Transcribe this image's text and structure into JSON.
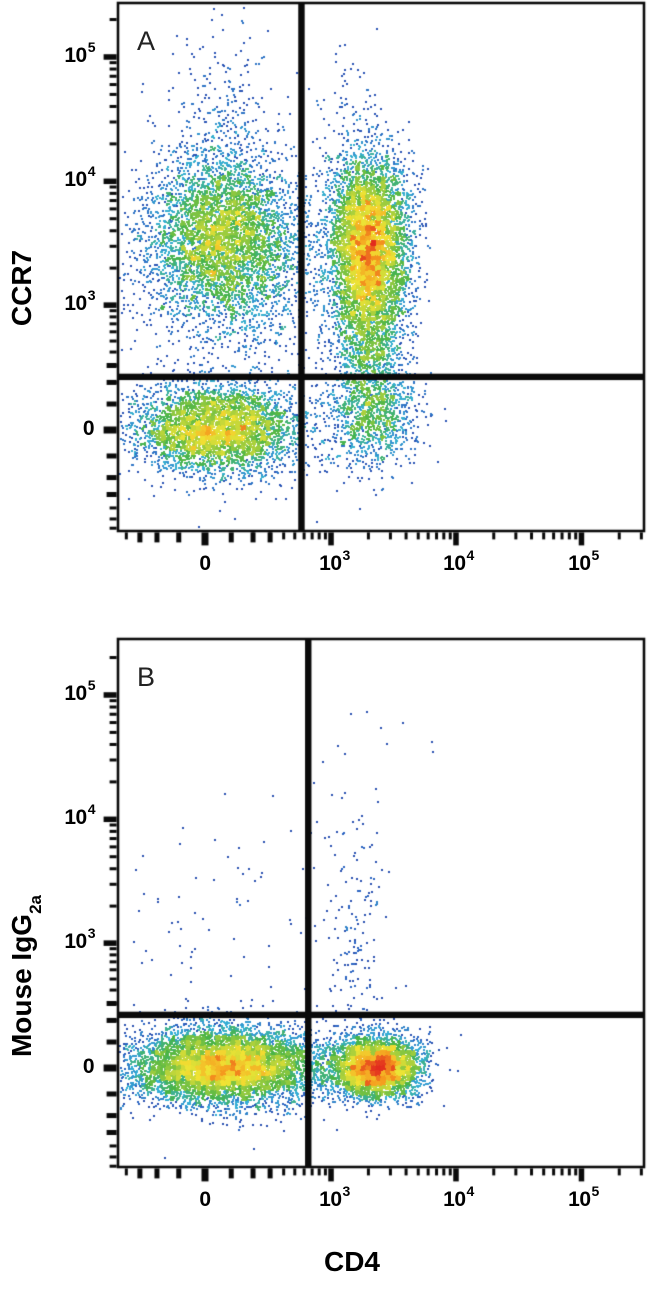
{
  "x_axis_label": "CD4",
  "density_palette": [
    {
      "t": 0.0,
      "color": "#273a96"
    },
    {
      "t": 0.22,
      "color": "#2b5fc0"
    },
    {
      "t": 0.4,
      "color": "#35aed6"
    },
    {
      "t": 0.55,
      "color": "#48b447"
    },
    {
      "t": 0.7,
      "color": "#a8cf3d"
    },
    {
      "t": 0.8,
      "color": "#f1e434"
    },
    {
      "t": 0.9,
      "color": "#f59a1e"
    },
    {
      "t": 1.0,
      "color": "#e22b1e"
    }
  ],
  "frame_color": "#0a0a0a",
  "chart_data": [
    {
      "type": "scatter_density",
      "panel_label": "A",
      "x_label": "CD4",
      "y_label": {
        "text": "CCR7",
        "sub": ""
      },
      "x_scale": "biexponential",
      "y_scale": "biexponential",
      "x_range": [
        -470,
        320000
      ],
      "y_range": [
        -630,
        270000
      ],
      "x_ticks": [
        {
          "value": 0,
          "base": "0",
          "exp": ""
        },
        {
          "value": 1000,
          "base": "10",
          "exp": "3"
        },
        {
          "value": 10000,
          "base": "10",
          "exp": "4"
        },
        {
          "value": 100000,
          "base": "10",
          "exp": "5"
        }
      ],
      "y_ticks": [
        {
          "value": 100000,
          "base": "10",
          "exp": "5"
        },
        {
          "value": 10000,
          "base": "10",
          "exp": "4"
        },
        {
          "value": 1000,
          "base": "10",
          "exp": "3"
        },
        {
          "value": 0,
          "base": "0",
          "exp": ""
        }
      ],
      "quadrant_gate": {
        "x": 570,
        "y": 230
      },
      "populations": [
        {
          "name": "CD4- CCR7+ cluster",
          "x": 70,
          "y": 3400,
          "sx": 0.7,
          "sy": 0.8,
          "n": 5200
        },
        {
          "name": "CD4- CCR7-high trail",
          "x": 70,
          "y": 30000,
          "sx": 0.55,
          "sy": 0.9,
          "n": 260
        },
        {
          "name": "CD4+ CCR7+ cluster",
          "x": 2000,
          "y": 3300,
          "sx": 0.37,
          "sy": 0.8,
          "n": 5600
        },
        {
          "name": "CD4+ CCR7-low tail",
          "x": 2000,
          "y": 650,
          "sx": 0.34,
          "sy": 0.75,
          "n": 1500
        },
        {
          "name": "CD4+ CCR7-high trail",
          "x": 1300,
          "y": 40000,
          "sx": 0.3,
          "sy": 0.8,
          "n": 60
        },
        {
          "name": "CD4- CCR7- cluster",
          "x": 40,
          "y": 5,
          "sx": 0.75,
          "sy": 0.4,
          "n": 4400
        },
        {
          "name": "CD4+ CCR7- cluster",
          "x": 2100,
          "y": 60,
          "sx": 0.42,
          "sy": 0.48,
          "n": 1100
        },
        {
          "name": "background scatter",
          "x": 120,
          "y": 800,
          "sx": 1.5,
          "sy": 1.8,
          "n": 380
        }
      ]
    },
    {
      "type": "scatter_density",
      "panel_label": "B",
      "x_label": "CD4",
      "y_label": {
        "text": "Mouse IgG",
        "sub": "2a"
      },
      "x_scale": "biexponential",
      "y_scale": "biexponential",
      "x_range": [
        -470,
        320000
      ],
      "y_range": [
        -630,
        270000
      ],
      "x_ticks": [
        {
          "value": 0,
          "base": "0",
          "exp": ""
        },
        {
          "value": 1000,
          "base": "10",
          "exp": "3"
        },
        {
          "value": 10000,
          "base": "10",
          "exp": "4"
        },
        {
          "value": 100000,
          "base": "10",
          "exp": "5"
        }
      ],
      "y_ticks": [
        {
          "value": 100000,
          "base": "10",
          "exp": "5"
        },
        {
          "value": 10000,
          "base": "10",
          "exp": "4"
        },
        {
          "value": 1000,
          "base": "10",
          "exp": "3"
        },
        {
          "value": 0,
          "base": "0",
          "exp": ""
        }
      ],
      "quadrant_gate": {
        "x": 650,
        "y": 230
      },
      "populations": [
        {
          "name": "CD4- IgG2a- cluster",
          "x": 70,
          "y": 8,
          "sx": 0.85,
          "sy": 0.35,
          "n": 7800
        },
        {
          "name": "CD4+ IgG2a- cluster",
          "x": 2300,
          "y": 5,
          "sx": 0.4,
          "sy": 0.28,
          "n": 4600
        },
        {
          "name": "CD4+ vertical trail",
          "x": 1500,
          "y": 1000,
          "sx": 0.3,
          "sy": 1.4,
          "n": 170
        },
        {
          "name": "background scatter",
          "x": 100,
          "y": 700,
          "sx": 1.4,
          "sy": 1.5,
          "n": 130
        },
        {
          "name": "high outliers",
          "x": 2700,
          "y": 45000,
          "sx": 0.45,
          "sy": 0.3,
          "n": 10
        }
      ]
    }
  ]
}
